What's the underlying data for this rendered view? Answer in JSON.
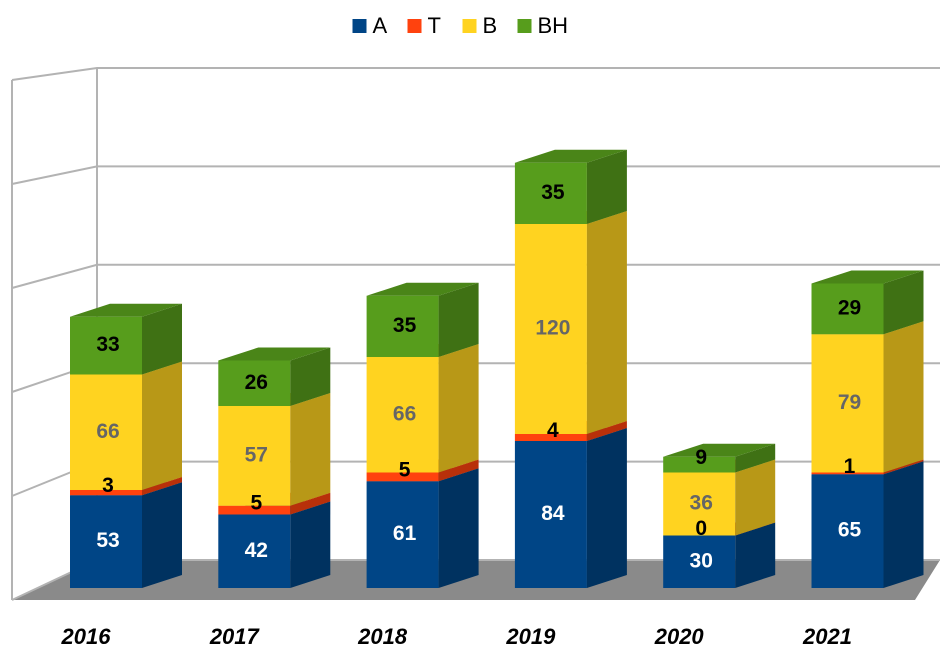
{
  "chart_data": {
    "type": "bar",
    "stacked": true,
    "categories": [
      "2016",
      "2017",
      "2018",
      "2019",
      "2020",
      "2021"
    ],
    "series": [
      {
        "name": "A",
        "color": "#004586",
        "label_color": "#ffffff",
        "values": [
          53,
          42,
          61,
          84,
          30,
          65
        ]
      },
      {
        "name": "T",
        "color": "#ff420e",
        "label_color": "#000000",
        "values": [
          3,
          5,
          5,
          4,
          0,
          1
        ]
      },
      {
        "name": "B",
        "color": "#ffd320",
        "label_color": "#666666",
        "values": [
          66,
          57,
          66,
          120,
          36,
          79
        ]
      },
      {
        "name": "BH",
        "color": "#579d1c",
        "label_color": "#000000",
        "values": [
          33,
          26,
          35,
          35,
          9,
          29
        ]
      }
    ],
    "ylim": [
      0,
      250
    ],
    "yticks": [
      0,
      50,
      100,
      150,
      200,
      250
    ],
    "grid": true,
    "legend": "top"
  }
}
